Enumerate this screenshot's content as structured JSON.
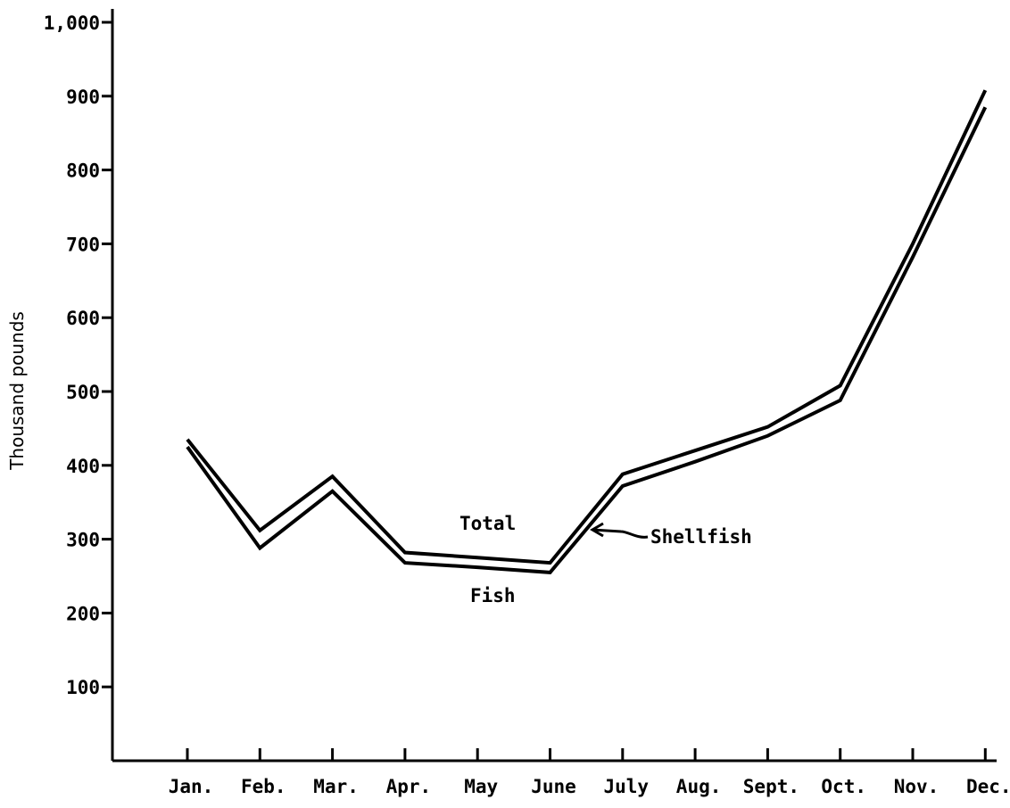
{
  "chart_data": {
    "type": "line",
    "title": "",
    "xlabel": "",
    "ylabel": "Thousand pounds",
    "categories": [
      "Jan.",
      "Feb.",
      "Mar.",
      "Apr.",
      "May",
      "June",
      "July",
      "Aug.",
      "Sept.",
      "Oct.",
      "Nov.",
      "Dec."
    ],
    "ylim": [
      0,
      1000
    ],
    "yticks": [
      100,
      200,
      300,
      400,
      500,
      600,
      700,
      800,
      900,
      1000
    ],
    "ytick_labels": [
      "100",
      "200",
      "300",
      "400",
      "500",
      "600",
      "700",
      "800",
      "900",
      "1,000"
    ],
    "grid": false,
    "series": [
      {
        "name": "Total",
        "values": [
          435,
          312,
          385,
          282,
          275,
          268,
          388,
          420,
          452,
          508,
          700,
          908
        ]
      },
      {
        "name": "Fish",
        "values": [
          425,
          288,
          365,
          268,
          262,
          255,
          372,
          405,
          440,
          488,
          682,
          885
        ]
      }
    ],
    "annotations": [
      {
        "text": "Total",
        "series": "Total"
      },
      {
        "text": "Fish",
        "series": "Fish"
      },
      {
        "text": "Shellfish",
        "points_to": "gap between Total and Fish"
      }
    ],
    "line_color": "#000000"
  }
}
